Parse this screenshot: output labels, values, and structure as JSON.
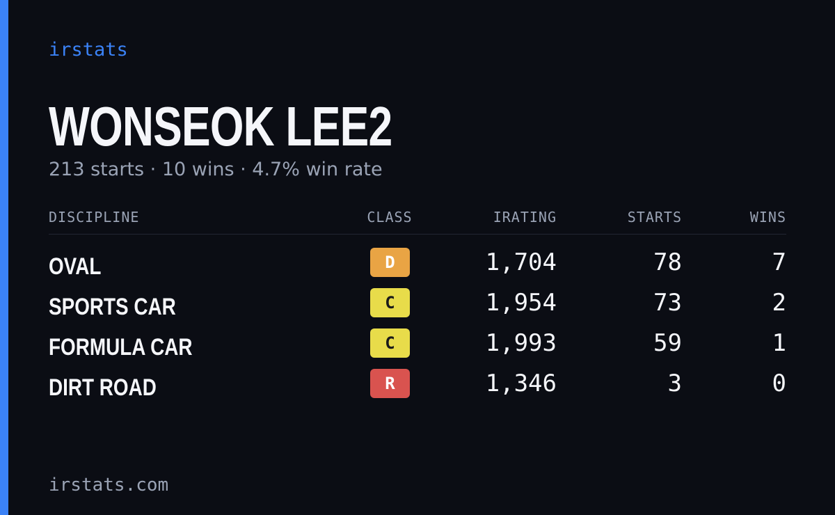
{
  "brand": "irstats",
  "driver": {
    "name": "WONSEOK LEE2",
    "summary": "213 starts · 10 wins · 4.7% win rate"
  },
  "table": {
    "columns": [
      "DISCIPLINE",
      "CLASS",
      "IRATING",
      "STARTS",
      "WINS"
    ],
    "rows": [
      [
        "OVAL",
        "D",
        "1,704",
        "78",
        "7"
      ],
      [
        "SPORTS CAR",
        "C",
        "1,954",
        "73",
        "2"
      ],
      [
        "FORMULA CAR",
        "C",
        "1,993",
        "59",
        "1"
      ],
      [
        "DIRT ROAD",
        "R",
        "1,346",
        "3",
        "0"
      ]
    ],
    "class_colors": [
      "#e9a444",
      "#e8dc4a",
      "#e8dc4a",
      "#d9534f"
    ]
  },
  "footer": "irstats.com"
}
